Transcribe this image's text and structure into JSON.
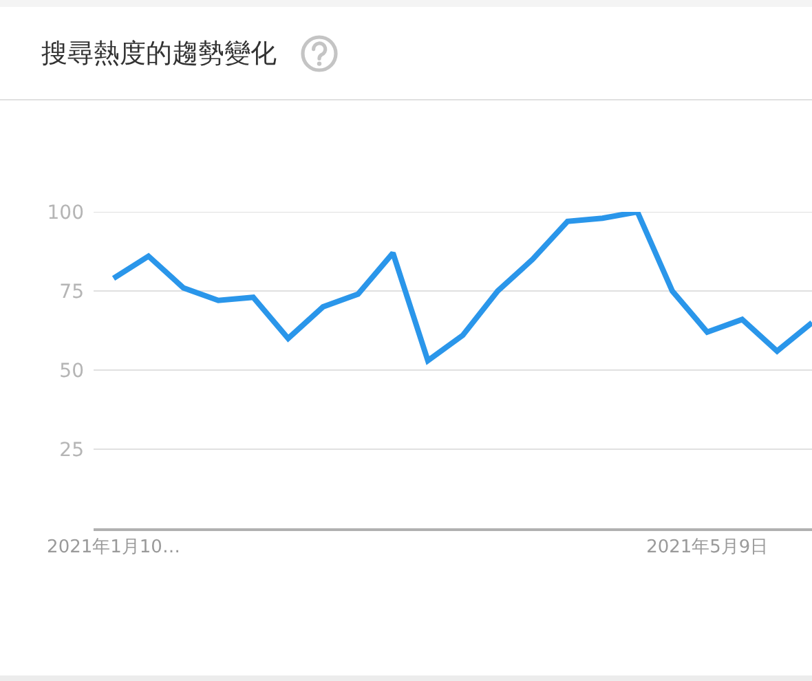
{
  "chart_data": {
    "type": "line",
    "title": "搜尋熱度的趨勢變化",
    "x": [
      "2021-01-10",
      "2021-01-17",
      "2021-01-24",
      "2021-01-31",
      "2021-02-07",
      "2021-02-14",
      "2021-02-21",
      "2021-02-28",
      "2021-03-07",
      "2021-03-14",
      "2021-03-21",
      "2021-03-28",
      "2021-04-04",
      "2021-04-11",
      "2021-04-18",
      "2021-04-25",
      "2021-05-02",
      "2021-05-09",
      "2021-05-16",
      "2021-05-23",
      "2021-05-30"
    ],
    "values": [
      79,
      86,
      76,
      72,
      73,
      60,
      70,
      74,
      87,
      53,
      61,
      75,
      85,
      97,
      98,
      100,
      75,
      62,
      66,
      56,
      65
    ],
    "color": "#2a96ea",
    "xlim": [
      "2021-01-06",
      "2021-05-30"
    ],
    "xticks": [
      {
        "value": "2021-01-10",
        "label": "2021年1月10…"
      },
      {
        "value": "2021-05-09",
        "label": "2021年5月9日"
      }
    ],
    "ylim": [
      0,
      100
    ],
    "yticks": [
      25,
      50,
      75,
      100
    ],
    "grid": "y",
    "line_style": "solid"
  }
}
